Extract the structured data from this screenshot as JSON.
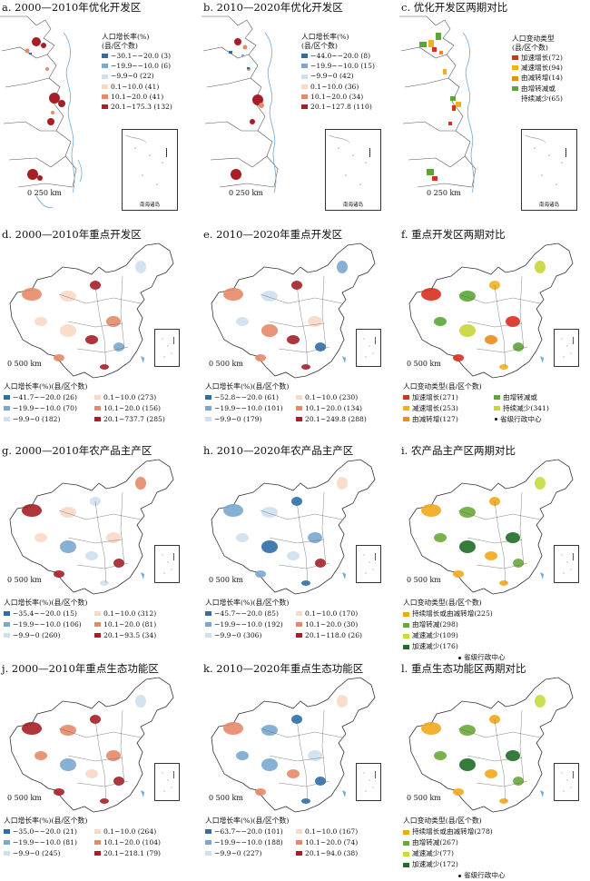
{
  "colors": {
    "neg3": "#2d6ea8",
    "neg2": "#7aa8cf",
    "neg1": "#cfe0ee",
    "pos1": "#f8d8c6",
    "pos2": "#e58a68",
    "pos3": "#a61e26",
    "accel": "#d7301f",
    "decel": "#f2b01e",
    "inc2dec": "#f08a1c",
    "dec2inc": "#5ca636",
    "cont_dec": "#c8d63a",
    "persist": "#f2a81c",
    "inc2dec_l": "#6aa83b",
    "decel_l": "#c4dd40",
    "accel_dec": "#1f6e27"
  },
  "scale": {
    "small": "250 km",
    "large": "500 km"
  },
  "inset": {
    "a": "南海诸岛",
    "b": "南海诸岛",
    "c": "南海诸岛"
  },
  "panels": {
    "a": {
      "title": "a. 2000—2010年优化开发区",
      "legend_title": "人口增长率(%)\n(县/区个数)",
      "items": [
        "−30.1~−20.0 (3)",
        "−19.9~−10.0 (6)",
        "−9.9~0 (22)",
        "0.1~10.0 (41)",
        "10.1~20.0 (41)",
        "20.1~175.3 (132)"
      ]
    },
    "b": {
      "title": "b. 2010—2020年优化开发区",
      "legend_title": "人口增长率(%)\n(县/区个数)",
      "items": [
        "−44.0~−20.0 (8)",
        "−19.9~−10.0 (15)",
        "−9.9~0 (42)",
        "0.1~10.0 (36)",
        "10.1~20.0 (34)",
        "20.1~127.8 (110)"
      ]
    },
    "c": {
      "title": "c. 优化开发区两期对比",
      "legend_title": "人口变动类型\n(县/区个数)",
      "items": [
        "加速增长(72)",
        "减速增长(94)",
        "由减转增(14)",
        "由增转减或",
        "持续减少(65)"
      ]
    },
    "d": {
      "title": "d. 2000—2010年重点开发区",
      "legend_title": "人口增长率(%)(县/区个数)",
      "items": [
        "−41.7~−20.0 (26)",
        "0.1~10.0 (273)",
        "−19.9~−10.0 (70)",
        "10.1~20.0 (156)",
        "−9.9~0 (182)",
        "20.1~737.7 (285)"
      ]
    },
    "e": {
      "title": "e. 2010—2020年重点开发区",
      "legend_title": "人口增长率(%)(县/区个数)",
      "items": [
        "−52.8~−20.0 (61)",
        "0.1~10.0 (230)",
        "−19.9~−10.0 (101)",
        "10.1~20.0 (134)",
        "−9.9~0 (179)",
        "20.1~249.8 (288)"
      ]
    },
    "f": {
      "title": "f. 重点开发区两期对比",
      "legend_title": "人口变动类型(县/区个数)",
      "items": [
        "加速增长(271)",
        "由增转减或",
        "减速增长(253)",
        "持续减少(341)",
        "由减转增(127)",
        "省级行政中心"
      ]
    },
    "g": {
      "title": "g. 2000—2010年农产品主产区",
      "legend_title": "人口增长率(%)(县/区个数)",
      "items": [
        "−35.4~−20.0 (15)",
        "0.1~10.0 (312)",
        "−19.9~−10.0 (106)",
        "10.1~20.0 (81)",
        "−9.9~0 (260)",
        "20.1~93.5 (34)"
      ]
    },
    "h": {
      "title": "h. 2010—2020年农产品主产区",
      "legend_title": "人口增长率(%)(县/区个数)",
      "items": [
        "−45.7~−20.0 (85)",
        "0.1~10.0 (170)",
        "−19.9~−10.0 (192)",
        "10.1~20.0 (30)",
        "−9.9~0 (306)",
        "20.1~118.0 (26)"
      ]
    },
    "i": {
      "title": "i. 农产品主产区两期对比",
      "legend_title": "人口变动类型(县/区个数)",
      "items": [
        "持续增长或由减转增(225)",
        "由增转减(298)",
        "减速减少(109)",
        "加速减少(176)",
        "省级行政中心"
      ]
    },
    "j": {
      "title": "j. 2000—2010年重点生态功能区",
      "legend_title": "人口增长率(%)(县/区个数)",
      "items": [
        "−35.0~−20.0 (21)",
        "0.1~10.0 (264)",
        "−19.9~−10.0 (81)",
        "10.1~20.0 (104)",
        "−9.9~0 (245)",
        "20.1~218.1 (79)"
      ]
    },
    "k": {
      "title": "k. 2010—2020年重点生态功能区",
      "legend_title": "人口增长率(%)(县/区个数)",
      "items": [
        "−63.7~−20.0 (101)",
        "0.1~10.0 (167)",
        "−19.9~−10.0 (188)",
        "10.1~20.0 (74)",
        "−9.9~0 (227)",
        "20.1~94.0 (38)"
      ]
    },
    "l": {
      "title": "l. 重点生态功能区两期对比",
      "legend_title": "人口变动类型(县/区个数)",
      "items": [
        "持续增长或由减转增(278)",
        "由增转减(267)",
        "减速减少(77)",
        "加速减少(172)",
        "省级行政中心"
      ]
    }
  }
}
